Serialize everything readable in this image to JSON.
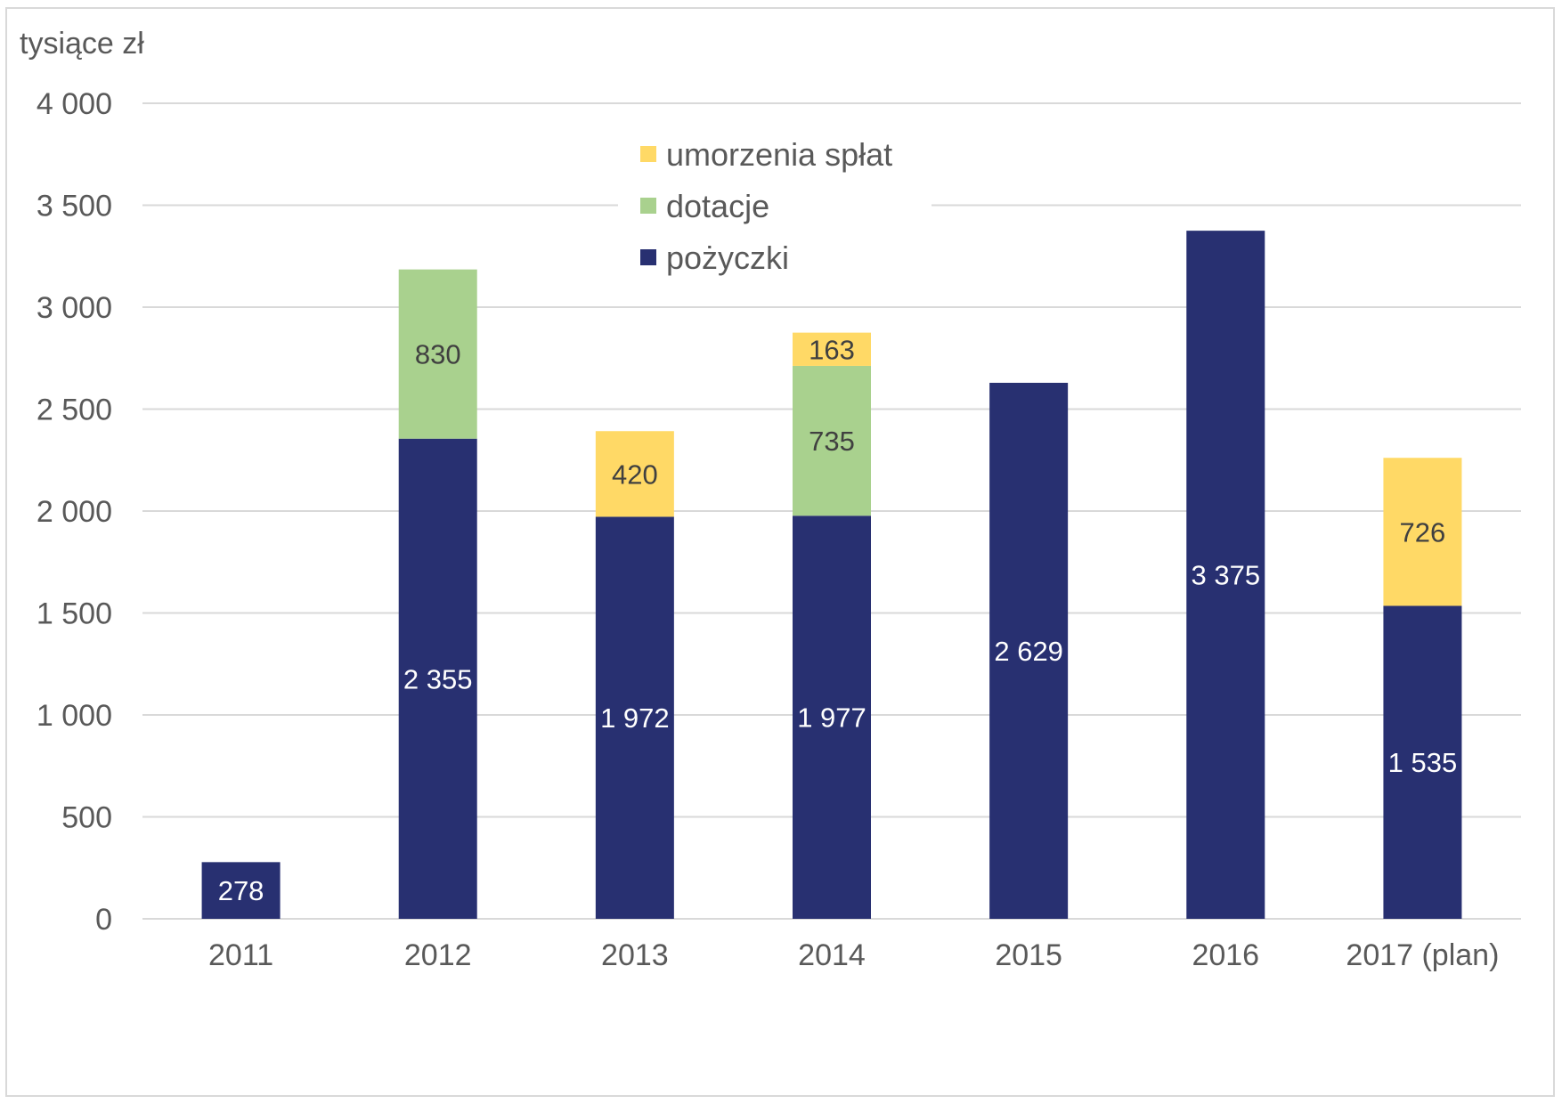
{
  "chart_data": {
    "type": "bar",
    "stacked": true,
    "ylabel": "tysiące zł",
    "ylim": [
      0,
      4000
    ],
    "yticks": [
      0,
      500,
      1000,
      1500,
      2000,
      2500,
      3000,
      3500,
      4000
    ],
    "ytick_labels": [
      "0",
      "500",
      "1 000",
      "1 500",
      "2 000",
      "2 500",
      "3 000",
      "3 500",
      "4 000"
    ],
    "categories": [
      "2011",
      "2012",
      "2013",
      "2014",
      "2015",
      "2016",
      "2017 (plan)"
    ],
    "grid": true,
    "legend_position": "top-center",
    "legend_order": [
      "umorzenia spłat",
      "dotacje",
      "pożyczki"
    ],
    "series": [
      {
        "name": "pożyczki",
        "color": "#283071",
        "label_color": "#ffffff",
        "values": [
          278,
          2355,
          1972,
          1977,
          2629,
          3375,
          1535
        ],
        "labels": [
          "278",
          "2 355",
          "1 972",
          "1 977",
          "2 629",
          "3 375",
          "1 535"
        ]
      },
      {
        "name": "dotacje",
        "color": "#a9d18e",
        "label_color": "#404040",
        "values": [
          0,
          830,
          0,
          735,
          0,
          0,
          0
        ],
        "labels": [
          "",
          "830",
          "",
          "735",
          "",
          "",
          ""
        ]
      },
      {
        "name": "umorzenia spłat",
        "color": "#ffd966",
        "label_color": "#404040",
        "values": [
          0,
          0,
          420,
          163,
          0,
          0,
          726
        ],
        "labels": [
          "",
          "",
          "420",
          "163",
          "",
          "",
          "726"
        ]
      }
    ]
  }
}
